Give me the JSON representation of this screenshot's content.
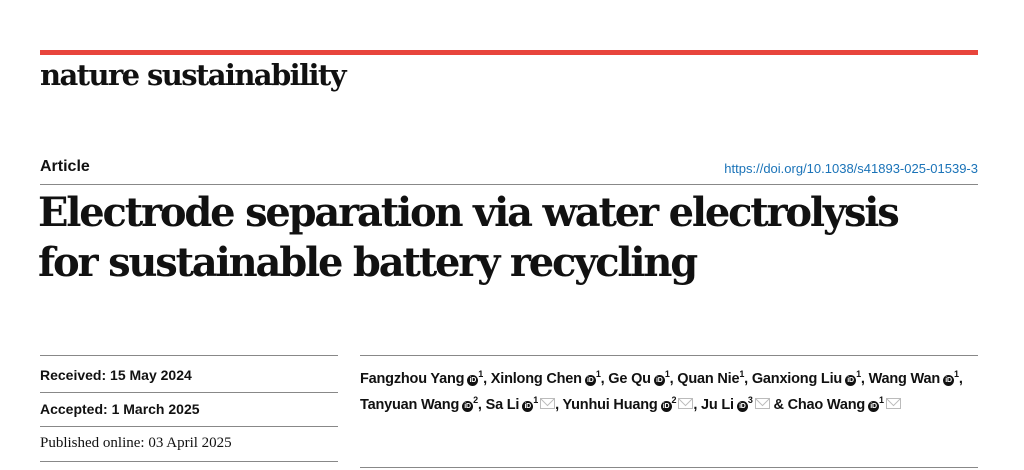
{
  "journal": "nature sustainability",
  "accent_color": "#e8453c",
  "article_type": "Article",
  "doi": "https://doi.org/10.1038/s41893-025-01539-3",
  "title_lines": [
    "Electrode separation via water electrolysis",
    "for sustainable battery recycling"
  ],
  "dates": {
    "received": "Received: 15 May 2024",
    "accepted": "Accepted: 1 March 2025",
    "published": "Published online: 03 April 2025"
  },
  "authors": [
    {
      "name": "Fangzhou Yang",
      "orcid": true,
      "aff": "1",
      "corr": false,
      "sep": ", "
    },
    {
      "name": "Xinlong Chen",
      "orcid": true,
      "aff": "1",
      "corr": false,
      "sep": ", "
    },
    {
      "name": "Ge Qu",
      "orcid": true,
      "aff": "1",
      "corr": false,
      "sep": ", "
    },
    {
      "name": "Quan Nie",
      "orcid": false,
      "aff": "1",
      "corr": false,
      "sep": ", "
    },
    {
      "name": "Ganxiong Liu",
      "orcid": true,
      "aff": "1",
      "corr": false,
      "sep": ", "
    },
    {
      "name": "Wang Wan",
      "orcid": true,
      "aff": "1",
      "corr": false,
      "sep": ", "
    },
    {
      "name": "Tanyuan Wang",
      "orcid": true,
      "aff": "2",
      "corr": false,
      "sep": ", "
    },
    {
      "name": "Sa Li",
      "orcid": true,
      "aff": "1",
      "corr": true,
      "sep": ", "
    },
    {
      "name": "Yunhui Huang",
      "orcid": true,
      "aff": "2",
      "corr": true,
      "sep": ", "
    },
    {
      "name": "Ju Li",
      "orcid": true,
      "aff": "3",
      "corr": true,
      "sep": " & "
    },
    {
      "name": "Chao Wang",
      "orcid": true,
      "aff": "1",
      "corr": true,
      "sep": ""
    }
  ]
}
